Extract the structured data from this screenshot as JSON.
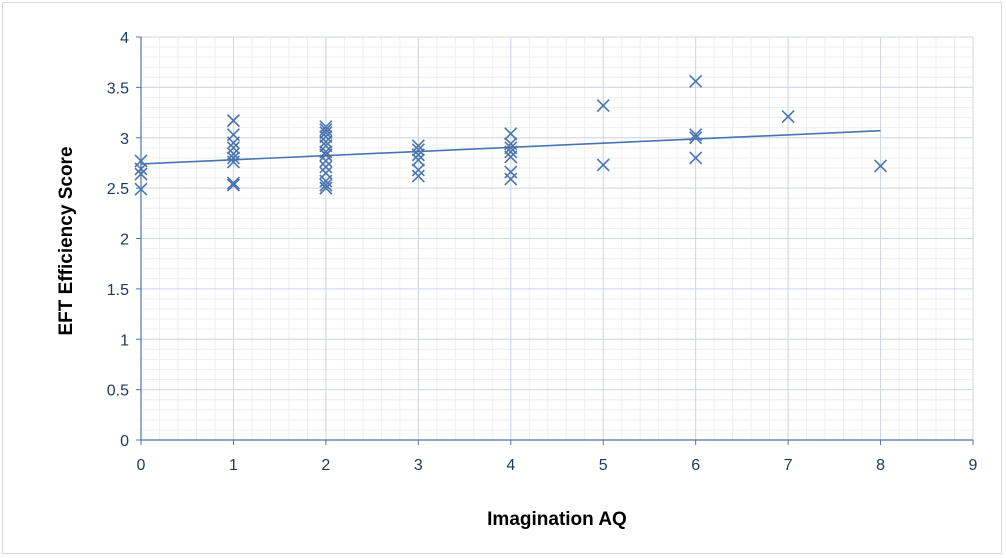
{
  "chart_data": {
    "type": "scatter",
    "title": "",
    "xlabel": "Imagination AQ",
    "ylabel": "EFT Efficiency Score",
    "xlim": [
      0,
      9
    ],
    "ylim": [
      0,
      4
    ],
    "x_ticks": [
      "0",
      "1",
      "2",
      "3",
      "4",
      "5",
      "6",
      "7",
      "8",
      "9"
    ],
    "y_ticks": [
      "0",
      "0.5",
      "1",
      "1.5",
      "2",
      "2.5",
      "3",
      "3.5",
      "4"
    ],
    "grid": true,
    "legend": "none",
    "marker": "x",
    "marker_color": "#4a74b0",
    "trendline": {
      "x": [
        0,
        8
      ],
      "y": [
        2.74,
        3.07
      ]
    },
    "series": [
      {
        "x": [
          0,
          0,
          0,
          0,
          1,
          1,
          1,
          1,
          1,
          1,
          1,
          1,
          1,
          2,
          2,
          2,
          2,
          2,
          2,
          2,
          2,
          2,
          2,
          2,
          2,
          2,
          2,
          3,
          3,
          3,
          3,
          3,
          3,
          4,
          4,
          4,
          4,
          4,
          4,
          4,
          5,
          5,
          6,
          6,
          6,
          6,
          7,
          8
        ],
        "y": [
          2.77,
          2.69,
          2.64,
          2.49,
          3.17,
          3.03,
          2.95,
          2.9,
          2.84,
          2.8,
          2.76,
          2.55,
          2.53,
          3.11,
          3.08,
          3.05,
          3.01,
          2.96,
          2.92,
          2.86,
          2.83,
          2.77,
          2.71,
          2.65,
          2.57,
          2.53,
          2.5,
          2.92,
          2.88,
          2.83,
          2.78,
          2.68,
          2.62,
          3.04,
          2.94,
          2.9,
          2.86,
          2.81,
          2.66,
          2.59,
          3.32,
          2.73,
          3.56,
          3.03,
          3.0,
          2.8,
          3.21,
          2.72
        ]
      }
    ]
  }
}
